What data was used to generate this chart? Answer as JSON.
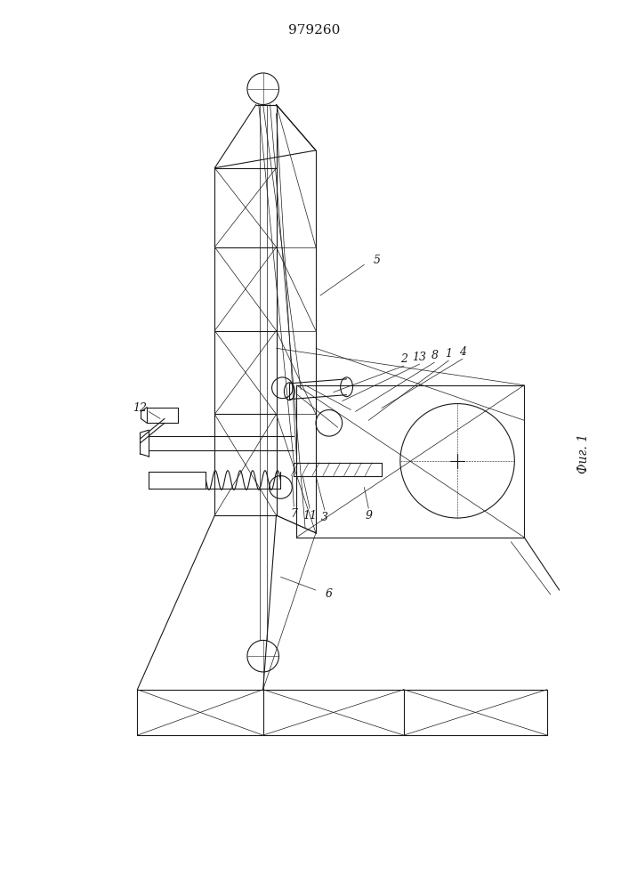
{
  "title": "979260",
  "fig_label": "Фиг. 1",
  "bg_color": "#ffffff",
  "line_color": "#1a1a1a",
  "lw": 0.8,
  "tlw": 0.5
}
